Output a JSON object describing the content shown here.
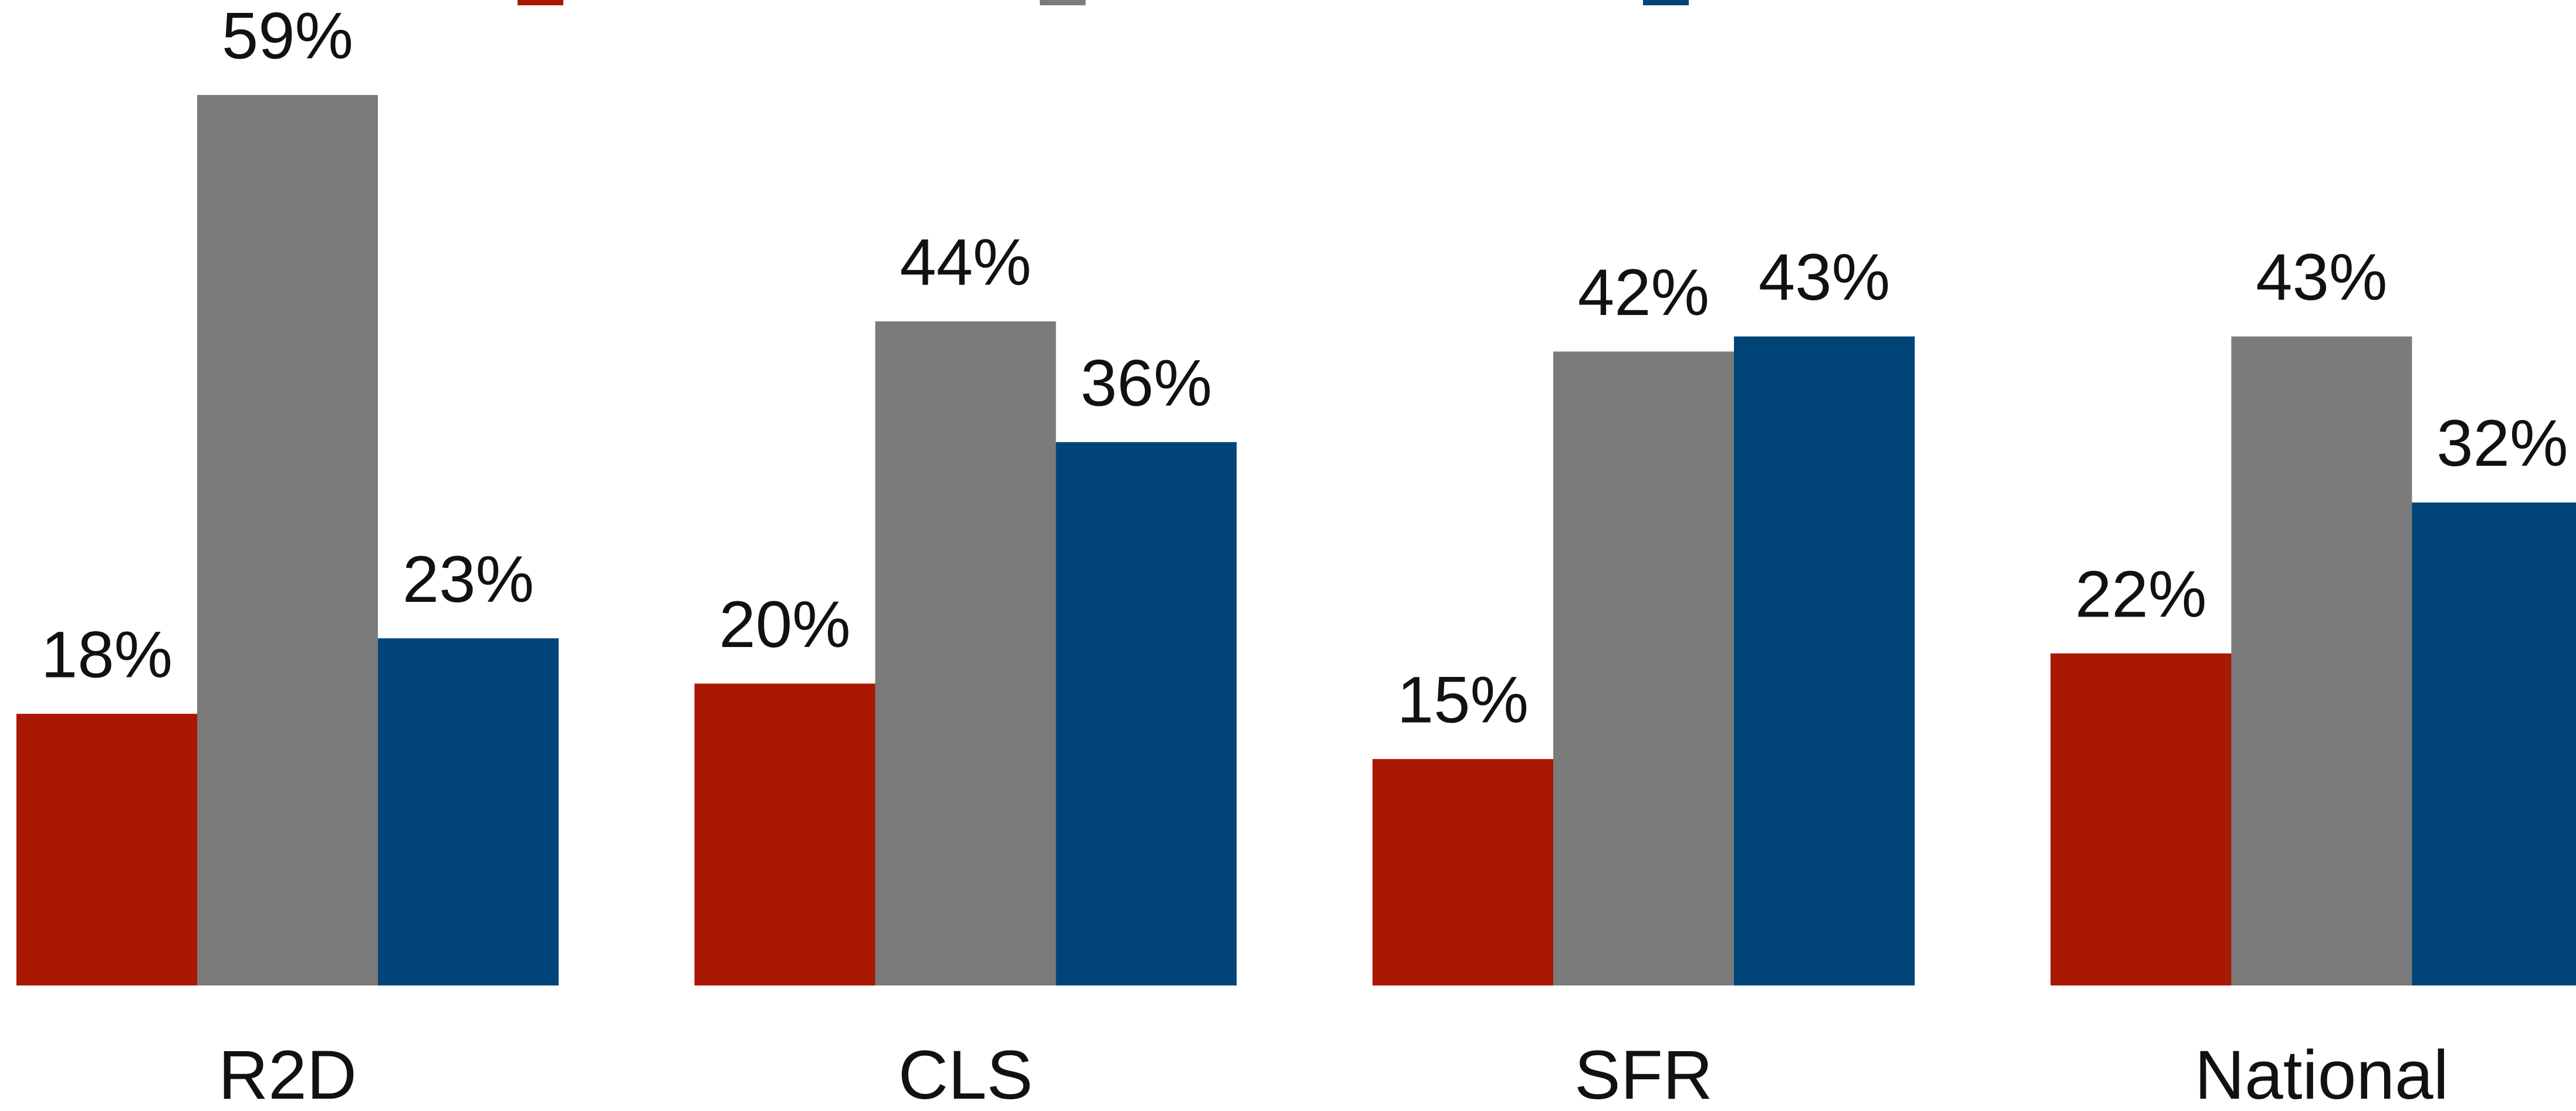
{
  "chart_data": {
    "type": "bar",
    "categories": [
      "R2D",
      "CLS",
      "SFR",
      "National"
    ],
    "series": [
      {
        "color": "#a91803",
        "values": [
          18,
          20,
          15,
          22
        ],
        "value_labels": [
          "18%",
          "20%",
          "15%",
          "22%"
        ]
      },
      {
        "color": "#7b7b7b",
        "values": [
          59,
          44,
          42,
          43
        ],
        "value_labels": [
          "59%",
          "44%",
          "42%",
          "43%"
        ]
      },
      {
        "color": "#004478",
        "values": [
          23,
          36,
          43,
          32
        ],
        "value_labels": [
          "23%",
          "36%",
          "43%",
          "32%"
        ]
      }
    ],
    "ylim": [
      0,
      65
    ]
  }
}
